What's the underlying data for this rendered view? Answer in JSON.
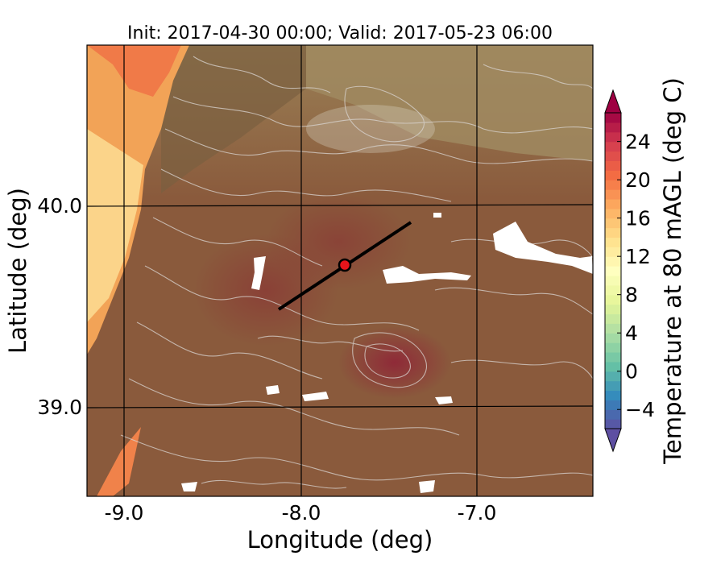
{
  "map": {
    "title": "Init: 2017-04-30 00:00; Valid: 2017-05-23 06:00",
    "xlabel": "Longitude (deg)",
    "ylabel": "Latitude (deg)",
    "xticks": [
      "-9.0",
      "-8.0",
      "-7.0"
    ],
    "yticks": [
      "40.0",
      "39.0"
    ],
    "lon_range": [
      -9.2,
      -6.35
    ],
    "lat_range": [
      38.55,
      40.8
    ],
    "lon_gridlines": [
      -9.0,
      -8.0,
      -7.0
    ],
    "lat_gridlines": [
      40.0,
      39.0
    ],
    "transect": {
      "start": [
        -8.12,
        39.47
      ],
      "end": [
        -7.38,
        39.92
      ]
    },
    "site_marker": {
      "lon": -7.75,
      "lat": 39.69,
      "color": "#e8141b"
    }
  },
  "colorbar": {
    "label": "Temperature at 80 mAGL (deg C)",
    "ticks": [
      "24",
      "20",
      "16",
      "12",
      "8",
      "4",
      "0",
      "−4"
    ],
    "tick_values": [
      24,
      20,
      16,
      12,
      8,
      4,
      0,
      -4
    ],
    "range": [
      -6,
      27
    ],
    "extend": "both",
    "colormap": "Spectral_r"
  }
}
